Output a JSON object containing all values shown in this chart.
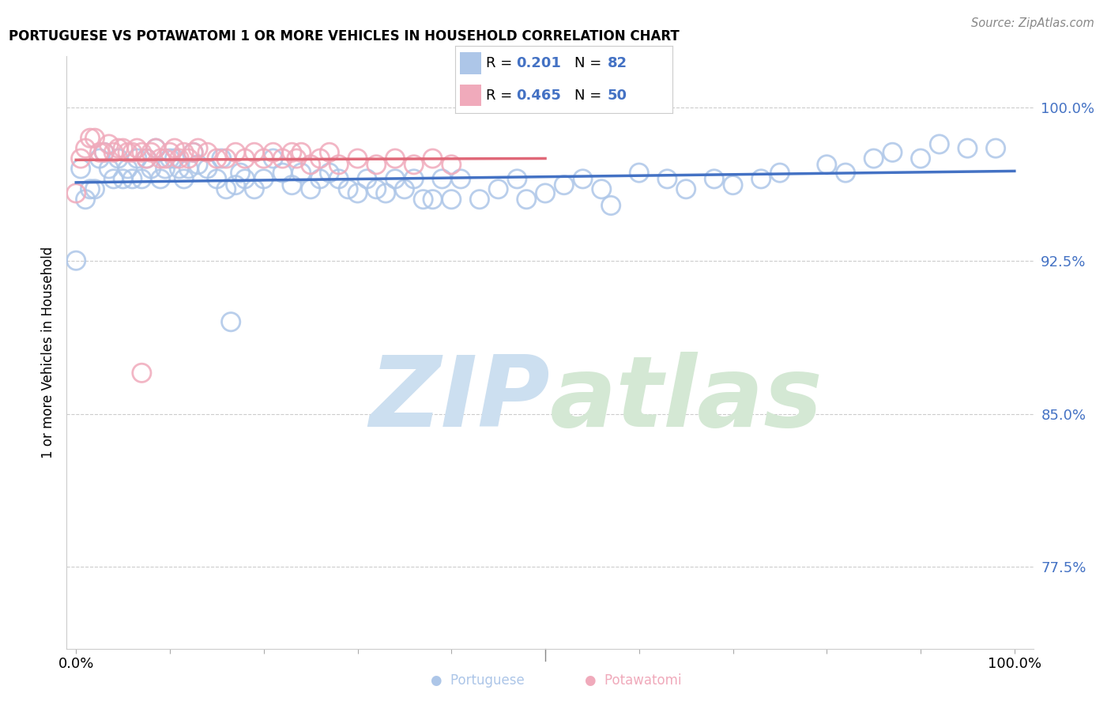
{
  "title": "PORTUGUESE VS POTAWATOMI 1 OR MORE VEHICLES IN HOUSEHOLD CORRELATION CHART",
  "source": "Source: ZipAtlas.com",
  "ylabel": "1 or more Vehicles in Household",
  "ytick_labels": [
    "77.5%",
    "85.0%",
    "92.5%",
    "100.0%"
  ],
  "ytick_values": [
    0.775,
    0.85,
    0.925,
    1.0
  ],
  "xlim": [
    -0.01,
    1.02
  ],
  "ylim": [
    0.735,
    1.025
  ],
  "legend_r1": "0.201",
  "legend_n1": "82",
  "legend_r2": "0.465",
  "legend_n2": "50",
  "portuguese_color": "#adc6e8",
  "potawatomi_color": "#f0aabb",
  "portuguese_line_color": "#4472c4",
  "potawatomi_line_color": "#e06878",
  "watermark_zip": "ZIP",
  "watermark_atlas": "atlas",
  "watermark_color": "#ccdff0",
  "port_x": [
    0.005,
    0.01,
    0.015,
    0.02,
    0.025,
    0.03,
    0.035,
    0.04,
    0.045,
    0.05,
    0.055,
    0.06,
    0.065,
    0.07,
    0.075,
    0.08,
    0.085,
    0.09,
    0.095,
    0.1,
    0.105,
    0.11,
    0.115,
    0.12,
    0.125,
    0.13,
    0.14,
    0.15,
    0.155,
    0.16,
    0.17,
    0.175,
    0.18,
    0.19,
    0.2,
    0.21,
    0.22,
    0.23,
    0.24,
    0.25,
    0.26,
    0.27,
    0.28,
    0.29,
    0.3,
    0.31,
    0.32,
    0.33,
    0.34,
    0.35,
    0.36,
    0.37,
    0.38,
    0.39,
    0.4,
    0.41,
    0.43,
    0.45,
    0.47,
    0.48,
    0.5,
    0.52,
    0.54,
    0.56,
    0.57,
    0.6,
    0.63,
    0.65,
    0.68,
    0.7,
    0.73,
    0.75,
    0.8,
    0.82,
    0.85,
    0.87,
    0.9,
    0.92,
    0.95,
    0.98,
    0.0,
    0.165
  ],
  "port_y": [
    0.97,
    0.955,
    0.96,
    0.96,
    0.975,
    0.978,
    0.97,
    0.965,
    0.975,
    0.965,
    0.97,
    0.965,
    0.975,
    0.965,
    0.975,
    0.97,
    0.98,
    0.965,
    0.97,
    0.975,
    0.975,
    0.97,
    0.965,
    0.97,
    0.978,
    0.972,
    0.97,
    0.965,
    0.975,
    0.96,
    0.962,
    0.968,
    0.965,
    0.96,
    0.965,
    0.975,
    0.968,
    0.962,
    0.968,
    0.96,
    0.965,
    0.968,
    0.965,
    0.96,
    0.958,
    0.965,
    0.96,
    0.958,
    0.965,
    0.96,
    0.965,
    0.955,
    0.955,
    0.965,
    0.955,
    0.965,
    0.955,
    0.96,
    0.965,
    0.955,
    0.958,
    0.962,
    0.965,
    0.96,
    0.952,
    0.968,
    0.965,
    0.96,
    0.965,
    0.962,
    0.965,
    0.968,
    0.972,
    0.968,
    0.975,
    0.978,
    0.975,
    0.982,
    0.98,
    0.98,
    0.925,
    0.895
  ],
  "potaw_x": [
    0.005,
    0.01,
    0.015,
    0.02,
    0.025,
    0.03,
    0.035,
    0.04,
    0.045,
    0.05,
    0.055,
    0.06,
    0.065,
    0.07,
    0.075,
    0.08,
    0.085,
    0.09,
    0.095,
    0.1,
    0.105,
    0.11,
    0.115,
    0.12,
    0.125,
    0.13,
    0.14,
    0.15,
    0.16,
    0.17,
    0.18,
    0.19,
    0.2,
    0.21,
    0.22,
    0.23,
    0.235,
    0.24,
    0.25,
    0.26,
    0.27,
    0.28,
    0.3,
    0.32,
    0.34,
    0.36,
    0.38,
    0.4,
    0.0,
    0.07
  ],
  "potaw_y": [
    0.975,
    0.98,
    0.985,
    0.985,
    0.978,
    0.978,
    0.982,
    0.978,
    0.98,
    0.98,
    0.978,
    0.978,
    0.98,
    0.978,
    0.975,
    0.978,
    0.98,
    0.975,
    0.975,
    0.978,
    0.98,
    0.975,
    0.978,
    0.975,
    0.978,
    0.98,
    0.978,
    0.975,
    0.975,
    0.978,
    0.975,
    0.978,
    0.975,
    0.978,
    0.975,
    0.978,
    0.975,
    0.978,
    0.972,
    0.975,
    0.978,
    0.972,
    0.975,
    0.972,
    0.975,
    0.972,
    0.975,
    0.972,
    0.958,
    0.87
  ]
}
